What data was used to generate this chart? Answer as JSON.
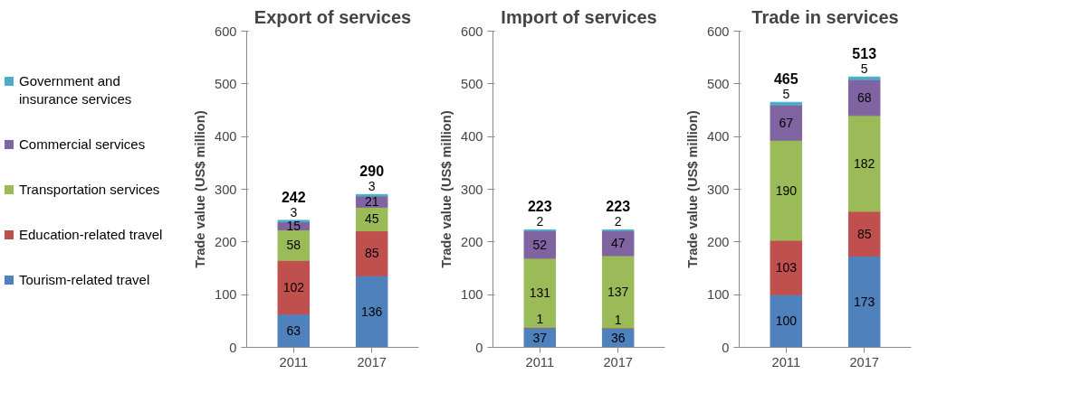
{
  "chart_data": [
    {
      "type": "bar",
      "title": "Export of services",
      "ylabel": "Trade value (US$ million)",
      "categories": [
        "2011",
        "2017"
      ],
      "stacked": true,
      "ylim": [
        0,
        600
      ],
      "yticks": [
        0,
        100,
        200,
        300,
        400,
        500,
        600
      ],
      "grid": false,
      "legend": "left",
      "data_labels": true,
      "totals": [
        "242",
        "290"
      ],
      "series": [
        {
          "name": "Tourism-related travel",
          "color": "#4f81bd",
          "values": [
            63,
            136
          ]
        },
        {
          "name": "Education-related travel",
          "color": "#c0504d",
          "values": [
            102,
            85
          ]
        },
        {
          "name": "Transportation services",
          "color": "#9bbb59",
          "values": [
            58,
            45
          ]
        },
        {
          "name": "Commercial services",
          "color": "#8064a2",
          "values": [
            15,
            21
          ]
        },
        {
          "name": "Government and insurance services",
          "color": "#4bacc6",
          "values": [
            3,
            3
          ]
        }
      ]
    },
    {
      "type": "bar",
      "title": "Import of services",
      "ylabel": "Trade value (US$ million)",
      "categories": [
        "2011",
        "2017"
      ],
      "stacked": true,
      "ylim": [
        0,
        600
      ],
      "yticks": [
        0,
        100,
        200,
        300,
        400,
        500,
        600
      ],
      "grid": false,
      "legend": false,
      "data_labels": true,
      "totals": [
        "223",
        "223"
      ],
      "series": [
        {
          "color": "#4f81bd",
          "values": [
            37,
            36
          ]
        },
        {
          "color": "#c0504d",
          "values": [
            1,
            1
          ]
        },
        {
          "color": "#9bbb59",
          "values": [
            131,
            137
          ]
        },
        {
          "color": "#8064a2",
          "values": [
            52,
            47
          ]
        },
        {
          "color": "#4bacc6",
          "values": [
            2,
            2
          ]
        }
      ]
    },
    {
      "type": "bar",
      "title": "Trade in services",
      "ylabel": "Trade value (US$ million)",
      "categories": [
        "2011",
        "2017"
      ],
      "stacked": true,
      "ylim": [
        0,
        600
      ],
      "yticks": [
        0,
        100,
        200,
        300,
        400,
        500,
        600
      ],
      "grid": false,
      "legend": false,
      "data_labels": true,
      "totals": [
        "465",
        "513"
      ],
      "series": [
        {
          "color": "#4f81bd",
          "values": [
            100,
            173
          ]
        },
        {
          "color": "#c0504d",
          "values": [
            103,
            85
          ]
        },
        {
          "color": "#9bbb59",
          "values": [
            190,
            182
          ]
        },
        {
          "color": "#8064a2",
          "values": [
            67,
            68
          ]
        },
        {
          "color": "#4bacc6",
          "values": [
            5,
            5
          ]
        }
      ]
    }
  ]
}
